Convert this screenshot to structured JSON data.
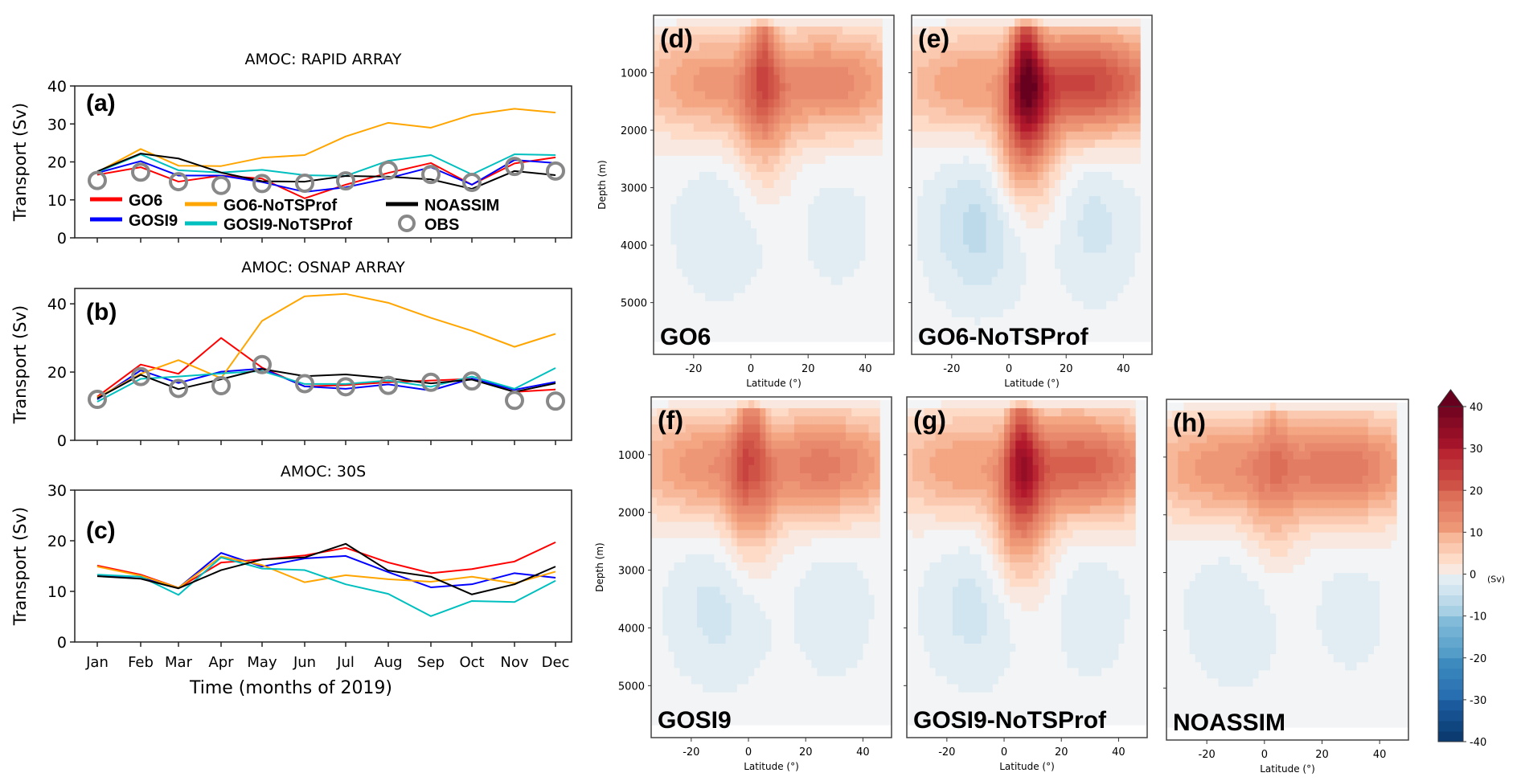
{
  "chart_data": [
    {
      "type": "line",
      "panel": "(a)",
      "title": "AMOC: RAPID ARRAY",
      "xlabel": "",
      "ylabel": "Transport (Sv)",
      "ylim": [
        0,
        40
      ],
      "yticks": [
        0,
        10,
        20,
        30,
        40
      ],
      "categories": [
        "Jan",
        "Feb",
        "Mar",
        "Apr",
        "May",
        "Jun",
        "Jul",
        "Aug",
        "Sep",
        "Oct",
        "Nov",
        "Dec"
      ],
      "legend_placement": "lower-left",
      "series": [
        {
          "name": "GO6",
          "color": "#ff0000",
          "values": [
            16.6,
            18.6,
            14.8,
            16.4,
            15.6,
            10.4,
            14.0,
            17.1,
            19.7,
            14.0,
            19.6,
            21.2
          ]
        },
        {
          "name": "GOSI9",
          "color": "#0000ff",
          "values": [
            17.1,
            20.2,
            16.4,
            16.4,
            14.7,
            12.1,
            13.3,
            15.7,
            18.6,
            14.0,
            20.5,
            19.7
          ]
        },
        {
          "name": "GO6-NoTSProf",
          "color": "#ffa500",
          "values": [
            17.3,
            23.4,
            19.0,
            18.9,
            21.1,
            21.8,
            26.7,
            30.3,
            29.0,
            32.4,
            34.0,
            33.0
          ]
        },
        {
          "name": "GOSI9-NoTSProf",
          "color": "#00bfbf",
          "values": [
            17.3,
            22.0,
            17.8,
            17.2,
            17.9,
            16.5,
            16.3,
            20.3,
            21.8,
            16.7,
            22.0,
            21.8
          ]
        },
        {
          "name": "NOASSIM",
          "color": "#000000",
          "values": [
            17.5,
            22.2,
            20.9,
            17.2,
            14.9,
            14.8,
            16.3,
            16.1,
            15.4,
            12.9,
            17.6,
            16.5
          ]
        },
        {
          "name": "OBS",
          "color": "#888888",
          "marker": "circle",
          "values": [
            15.1,
            17.3,
            14.8,
            13.8,
            14.3,
            14.4,
            15.0,
            17.8,
            16.7,
            14.6,
            18.8,
            17.6
          ]
        }
      ]
    },
    {
      "type": "line",
      "panel": "(b)",
      "title": "AMOC: OSNAP ARRAY",
      "xlabel": "",
      "ylabel": "Transport (Sv)",
      "ylim": [
        0,
        44.5
      ],
      "yticks": [
        0,
        20,
        40
      ],
      "categories": [
        "Jan",
        "Feb",
        "Mar",
        "Apr",
        "May",
        "Jun",
        "Jul",
        "Aug",
        "Sep",
        "Oct",
        "Nov",
        "Dec"
      ],
      "series": [
        {
          "name": "GO6",
          "color": "#ff0000",
          "values": [
            12.8,
            22.2,
            19.5,
            30.0,
            21.3,
            15.8,
            16.2,
            17.0,
            17.5,
            18.0,
            14.2,
            14.9
          ]
        },
        {
          "name": "GOSI9",
          "color": "#0000ff",
          "values": [
            12.0,
            20.5,
            16.8,
            20.1,
            21.0,
            15.8,
            15.1,
            16.4,
            14.6,
            18.1,
            14.8,
            17.1
          ]
        },
        {
          "name": "GO6-NoTSProf",
          "color": "#ffa500",
          "values": [
            12.5,
            19.5,
            23.5,
            18.2,
            35.0,
            42.2,
            42.9,
            40.3,
            35.9,
            32.1,
            27.4,
            31.2
          ]
        },
        {
          "name": "GOSI9-NoTSProf",
          "color": "#00bfbf",
          "values": [
            11.3,
            18.0,
            18.7,
            19.6,
            20.3,
            16.5,
            16.5,
            17.5,
            15.7,
            18.7,
            15.1,
            21.2
          ]
        },
        {
          "name": "NOASSIM",
          "color": "#000000",
          "values": [
            12.3,
            19.2,
            15.0,
            17.9,
            20.9,
            18.8,
            19.3,
            18.2,
            16.7,
            17.8,
            14.2,
            16.7
          ]
        },
        {
          "name": "OBS",
          "color": "#888888",
          "marker": "circle",
          "values": [
            12.0,
            18.7,
            15.2,
            16.0,
            22.2,
            16.6,
            15.7,
            16.1,
            17.0,
            17.4,
            11.7,
            11.5
          ]
        }
      ]
    },
    {
      "type": "line",
      "panel": "(c)",
      "title": "AMOC: 30S",
      "xlabel": "Time (months of 2019)",
      "ylabel": "Transport (Sv)",
      "ylim": [
        0,
        30
      ],
      "yticks": [
        0,
        10,
        20,
        30
      ],
      "categories": [
        "Jan",
        "Feb",
        "Mar",
        "Apr",
        "May",
        "Jun",
        "Jul",
        "Aug",
        "Sep",
        "Oct",
        "Nov",
        "Dec"
      ],
      "series": [
        {
          "name": "GO6",
          "color": "#ff0000",
          "values": [
            15.1,
            13.3,
            10.7,
            15.7,
            16.3,
            17.1,
            18.6,
            15.7,
            13.6,
            14.4,
            15.9,
            19.7
          ]
        },
        {
          "name": "GOSI9",
          "color": "#0000ff",
          "values": [
            13.1,
            12.9,
            10.7,
            17.6,
            14.9,
            16.5,
            17.0,
            13.8,
            10.8,
            11.4,
            13.6,
            12.7
          ]
        },
        {
          "name": "GO6-NoTSProf",
          "color": "#ffa500",
          "values": [
            14.9,
            13.1,
            10.7,
            16.9,
            15.2,
            11.8,
            13.2,
            12.4,
            11.9,
            12.9,
            11.6,
            13.9
          ]
        },
        {
          "name": "GOSI9-NoTSProf",
          "color": "#00bfbf",
          "values": [
            13.3,
            12.9,
            9.3,
            16.7,
            14.5,
            14.2,
            11.4,
            9.5,
            5.1,
            8.1,
            7.9,
            12.1
          ]
        },
        {
          "name": "NOASSIM",
          "color": "#000000",
          "values": [
            13.0,
            12.5,
            10.6,
            14.2,
            16.3,
            16.7,
            19.4,
            14.1,
            12.9,
            9.4,
            11.4,
            14.9
          ]
        }
      ]
    },
    {
      "type": "heatmap",
      "panels": [
        {
          "tag": "(d)",
          "label": "GO6",
          "show_ylabels": true,
          "core_lat": 4,
          "core_depth": 1000,
          "peak_sv": 24,
          "north_sv": 15,
          "south_sv": 12,
          "deep_sv": -3
        },
        {
          "tag": "(e)",
          "label": "GO6-NoTSProf",
          "show_ylabels": false,
          "core_lat": 6,
          "core_depth": 1300,
          "peak_sv": 40,
          "north_sv": 24,
          "south_sv": 11,
          "deep_sv": -6
        },
        {
          "tag": "(f)",
          "label": "GOSI9",
          "show_ylabels": true,
          "core_lat": 1,
          "core_depth": 1000,
          "peak_sv": 24,
          "north_sv": 16,
          "south_sv": 13,
          "deep_sv": -4
        },
        {
          "tag": "(g)",
          "label": "GOSI9-NoTSProf",
          "show_ylabels": false,
          "core_lat": 6,
          "core_depth": 1300,
          "peak_sv": 32,
          "north_sv": 20,
          "south_sv": 11,
          "deep_sv": -4
        },
        {
          "tag": "(h)",
          "label": "NOASSIM",
          "show_ylabels": false,
          "core_lat": 3,
          "core_depth": 1100,
          "peak_sv": 18,
          "north_sv": 17,
          "south_sv": 13,
          "deep_sv": -3
        }
      ],
      "xlabel": "Latitude (°)",
      "ylabel": "Depth (m)",
      "xlim": [
        -34,
        50
      ],
      "xticks": [
        -20,
        0,
        20,
        40
      ],
      "ylim": [
        0,
        5900
      ],
      "yticks": [
        1000,
        2000,
        3000,
        4000,
        5000
      ],
      "colorbar": {
        "label": "(Sv)",
        "range": [
          -40,
          40
        ],
        "ticks": [
          40,
          30,
          20,
          10,
          0,
          -10,
          -20,
          -30,
          -40
        ],
        "extend": "max",
        "cmap": "RdBu_r"
      }
    }
  ]
}
